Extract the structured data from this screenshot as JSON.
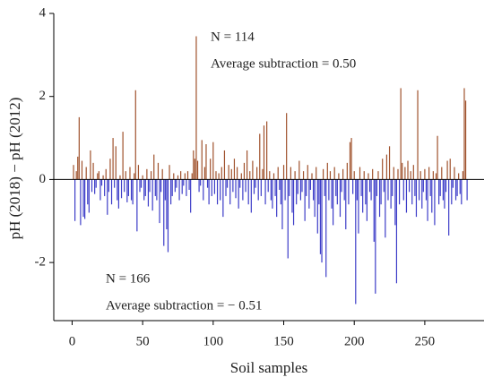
{
  "chart_data": {
    "type": "bar",
    "xlabel": "Soil samples",
    "ylabel": "pH (2018) − pH (2012)",
    "annotations": [
      "N = 114",
      "Average subtraction = 0.50",
      "N = 166",
      "Average subtraction = − 0.51"
    ],
    "positive_color": "#a0522d",
    "negative_color": "#3d3dc8",
    "xlim": [
      -13,
      292
    ],
    "ylim": [
      -3.4,
      4
    ],
    "xticks": [
      0,
      50,
      100,
      150,
      200,
      250
    ],
    "yticks": [
      -2,
      0,
      2,
      4
    ],
    "x": [
      1,
      2,
      3,
      4,
      5,
      6,
      7,
      8,
      9,
      10,
      11,
      12,
      13,
      14,
      15,
      16,
      17,
      18,
      19,
      20,
      21,
      22,
      23,
      24,
      25,
      26,
      27,
      28,
      29,
      30,
      31,
      32,
      33,
      34,
      35,
      36,
      37,
      38,
      39,
      40,
      41,
      42,
      43,
      44,
      45,
      46,
      47,
      48,
      49,
      50,
      51,
      52,
      53,
      54,
      55,
      56,
      57,
      58,
      59,
      60,
      61,
      62,
      63,
      64,
      65,
      66,
      67,
      68,
      69,
      70,
      71,
      72,
      73,
      74,
      75,
      76,
      77,
      78,
      79,
      80,
      81,
      82,
      83,
      84,
      85,
      86,
      87,
      88,
      89,
      90,
      91,
      92,
      93,
      94,
      95,
      96,
      97,
      98,
      99,
      100,
      101,
      102,
      103,
      104,
      105,
      106,
      107,
      108,
      109,
      110,
      111,
      112,
      113,
      114,
      115,
      116,
      117,
      118,
      119,
      120,
      121,
      122,
      123,
      124,
      125,
      126,
      127,
      128,
      129,
      130,
      131,
      132,
      133,
      134,
      135,
      136,
      137,
      138,
      139,
      140,
      141,
      142,
      143,
      144,
      145,
      146,
      147,
      148,
      149,
      150,
      151,
      152,
      153,
      154,
      155,
      156,
      157,
      158,
      159,
      160,
      161,
      162,
      163,
      164,
      165,
      166,
      167,
      168,
      169,
      170,
      171,
      172,
      173,
      174,
      175,
      176,
      177,
      178,
      179,
      180,
      181,
      182,
      183,
      184,
      185,
      186,
      187,
      188,
      189,
      190,
      191,
      192,
      193,
      194,
      195,
      196,
      197,
      198,
      199,
      200,
      201,
      202,
      203,
      204,
      205,
      206,
      207,
      208,
      209,
      210,
      211,
      212,
      213,
      214,
      215,
      216,
      217,
      218,
      219,
      220,
      221,
      222,
      223,
      224,
      225,
      226,
      227,
      228,
      229,
      230,
      231,
      232,
      233,
      234,
      235,
      236,
      237,
      238,
      239,
      240,
      241,
      242,
      243,
      244,
      245,
      246,
      247,
      248,
      249,
      250,
      251,
      252,
      253,
      254,
      255,
      256,
      257,
      258,
      259,
      260,
      261,
      262,
      263,
      264,
      265,
      266,
      267,
      268,
      269,
      270,
      271,
      272,
      273,
      274,
      275,
      276,
      277,
      278,
      279,
      280
    ],
    "values": [
      0.35,
      -1.0,
      0.2,
      0.55,
      1.5,
      -1.1,
      0.45,
      -0.9,
      -0.95,
      0.3,
      -0.6,
      -0.8,
      0.7,
      -0.3,
      0.4,
      -0.35,
      -0.2,
      0.15,
      0.2,
      -0.5,
      -0.15,
      0.1,
      -0.4,
      0.25,
      -0.85,
      -0.3,
      0.5,
      -0.6,
      1.0,
      -0.2,
      0.8,
      -0.5,
      -0.7,
      0.1,
      -0.45,
      1.15,
      -0.3,
      0.2,
      -0.55,
      -0.4,
      0.3,
      -0.5,
      -0.6,
      0.15,
      2.15,
      -1.25,
      0.35,
      -0.3,
      -0.2,
      0.1,
      -0.5,
      -0.4,
      0.25,
      -0.65,
      -0.3,
      0.2,
      -0.75,
      0.6,
      -0.4,
      -0.5,
      0.4,
      -1.05,
      -0.3,
      0.25,
      -1.6,
      -0.5,
      -1.2,
      -1.75,
      0.35,
      -0.6,
      -0.4,
      0.15,
      -0.3,
      -0.2,
      0.1,
      -0.5,
      0.2,
      -0.35,
      -0.15,
      0.15,
      -0.4,
      0.2,
      -0.25,
      -0.8,
      0.15,
      0.7,
      0.5,
      3.45,
      0.45,
      -0.3,
      -0.15,
      0.95,
      -0.5,
      0.3,
      0.85,
      -0.2,
      -0.6,
      0.5,
      -0.4,
      0.9,
      -0.35,
      0.2,
      -0.6,
      0.15,
      -0.5,
      0.3,
      -0.9,
      0.7,
      -0.4,
      -0.2,
      0.35,
      -0.6,
      0.25,
      -0.3,
      0.5,
      -0.45,
      0.3,
      -0.7,
      -0.2,
      0.15,
      -0.5,
      0.4,
      -0.3,
      0.7,
      -0.6,
      0.2,
      -0.8,
      0.45,
      -0.35,
      -0.2,
      0.3,
      -0.5,
      1.1,
      -0.4,
      0.25,
      1.3,
      -0.6,
      1.4,
      -0.3,
      0.2,
      -0.5,
      -0.7,
      0.15,
      -0.4,
      -0.9,
      0.3,
      -0.25,
      -0.6,
      -1.2,
      0.35,
      -0.5,
      1.6,
      -1.9,
      -0.4,
      0.3,
      -0.8,
      -1.1,
      0.2,
      -0.6,
      -0.35,
      0.45,
      -0.5,
      -0.3,
      0.2,
      -1.0,
      -0.4,
      0.35,
      -0.7,
      -0.25,
      0.15,
      -0.5,
      -0.9,
      0.3,
      -1.3,
      -0.6,
      -1.8,
      -2.0,
      0.25,
      -0.4,
      -2.35,
      0.4,
      -0.5,
      0.2,
      -0.7,
      -1.1,
      0.3,
      -0.4,
      -0.6,
      0.15,
      -0.9,
      -0.3,
      0.25,
      -0.5,
      -1.2,
      0.4,
      -0.6,
      0.9,
      1.0,
      -0.35,
      0.2,
      -3.0,
      -0.5,
      -1.3,
      0.3,
      -0.4,
      -0.8,
      0.2,
      -0.6,
      -1.0,
      0.15,
      -0.3,
      -0.5,
      0.25,
      -1.5,
      -2.75,
      -0.4,
      0.2,
      -0.9,
      -0.6,
      0.5,
      -0.3,
      -1.4,
      0.6,
      -0.5,
      0.8,
      -0.7,
      -0.4,
      0.3,
      -1.1,
      -2.5,
      0.25,
      -0.6,
      2.2,
      0.4,
      -0.5,
      0.3,
      -0.8,
      0.45,
      -0.3,
      0.2,
      -0.6,
      0.35,
      -0.4,
      -0.9,
      2.15,
      -0.5,
      0.2,
      -0.7,
      -0.3,
      0.25,
      -0.5,
      -1.0,
      0.3,
      -0.4,
      -0.8,
      0.2,
      -1.1,
      0.15,
      1.05,
      -0.6,
      -0.4,
      0.3,
      -0.5,
      -0.7,
      -0.3,
      0.45,
      -1.35,
      0.5,
      -0.6,
      -0.2,
      0.3,
      -0.5,
      -0.4,
      0.15,
      -0.35,
      -0.6,
      0.2,
      2.2,
      1.9,
      -0.5
    ]
  }
}
